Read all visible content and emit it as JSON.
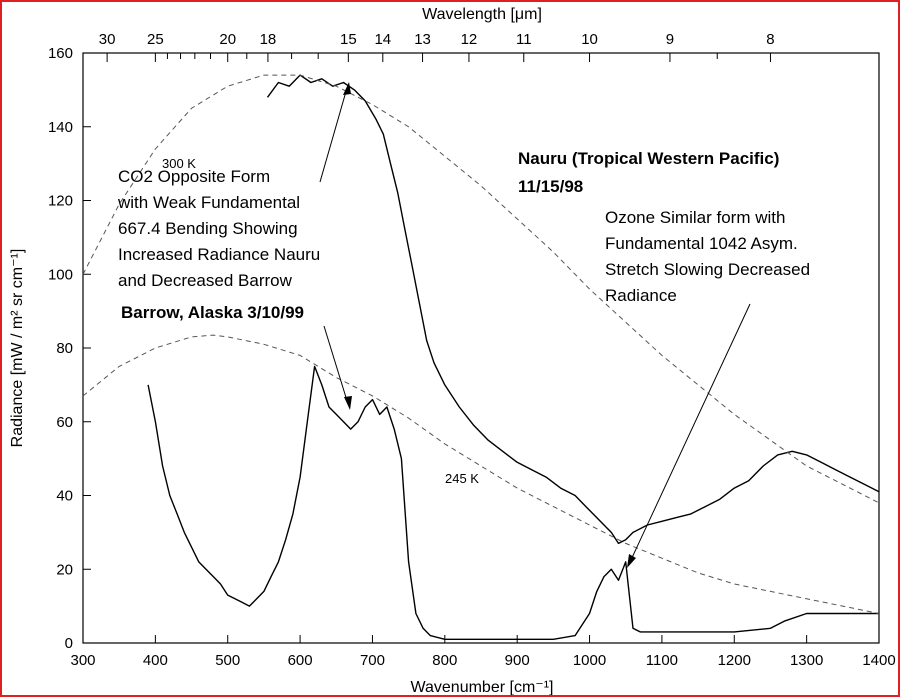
{
  "chart_data": {
    "type": "line",
    "x_axis": {
      "label": "Wavenumber [cm⁻¹]",
      "range": [
        300,
        1400
      ],
      "ticks": [
        300,
        400,
        500,
        600,
        700,
        800,
        900,
        1000,
        1100,
        1200,
        1300,
        1400
      ]
    },
    "top_axis": {
      "label": "Wavelength [μm]",
      "major_ticks": [
        30,
        25,
        20,
        18,
        15,
        14,
        13,
        12,
        11,
        10,
        9,
        8
      ],
      "minor_ticks": [
        24,
        23,
        22,
        21,
        19,
        17,
        16,
        8.5
      ]
    },
    "y_axis": {
      "label": "Radiance [mW / m² sr cm⁻¹]",
      "range": [
        0,
        160
      ],
      "ticks": [
        0,
        20,
        40,
        60,
        80,
        100,
        120,
        140,
        160
      ],
      "tick_labels": [
        "0",
        "20",
        "40",
        "60",
        "80",
        "100",
        "120",
        "140",
        "160"
      ]
    },
    "series": [
      {
        "name": "Nauru (Tropical Western Pacific) 11/15/98",
        "style": "solid",
        "x": [
          555,
          570,
          585,
          600,
          615,
          630,
          645,
          660,
          675,
          690,
          705,
          715,
          725,
          735,
          745,
          755,
          765,
          775,
          785,
          800,
          820,
          840,
          860,
          880,
          900,
          920,
          940,
          960,
          980,
          1000,
          1020,
          1030,
          1040,
          1050,
          1060,
          1080,
          1100,
          1120,
          1140,
          1160,
          1180,
          1200,
          1220,
          1240,
          1260,
          1280,
          1300,
          1320,
          1340,
          1360,
          1380,
          1400
        ],
        "y": [
          148,
          152,
          151,
          154,
          152,
          153,
          151,
          152,
          150,
          147,
          142,
          138,
          130,
          122,
          112,
          102,
          92,
          82,
          76,
          70,
          64,
          59,
          55,
          52,
          49,
          47,
          45,
          42,
          40,
          36,
          32,
          30,
          27,
          28,
          30,
          32,
          33,
          34,
          35,
          37,
          39,
          42,
          44,
          48,
          51,
          52,
          51,
          49,
          47,
          45,
          43,
          41
        ]
      },
      {
        "name": "Barrow, Alaska 3/10/99",
        "style": "solid",
        "x": [
          390,
          400,
          410,
          420,
          430,
          440,
          450,
          460,
          470,
          480,
          490,
          500,
          510,
          520,
          530,
          540,
          550,
          560,
          570,
          580,
          590,
          600,
          610,
          620,
          630,
          640,
          650,
          660,
          670,
          680,
          690,
          700,
          710,
          720,
          730,
          740,
          750,
          760,
          770,
          780,
          800,
          850,
          900,
          950,
          980,
          1000,
          1010,
          1020,
          1030,
          1040,
          1050,
          1060,
          1070,
          1080,
          1100,
          1150,
          1200,
          1250,
          1270,
          1300,
          1350,
          1400
        ],
        "y": [
          70,
          60,
          48,
          40,
          35,
          30,
          26,
          22,
          20,
          18,
          16,
          13,
          12,
          11,
          10,
          12,
          14,
          18,
          22,
          28,
          35,
          45,
          60,
          75,
          70,
          64,
          62,
          60,
          58,
          60,
          64,
          66,
          62,
          64,
          58,
          50,
          22,
          8,
          4,
          2,
          1,
          1,
          1,
          1,
          2,
          8,
          14,
          18,
          20,
          17,
          22,
          4,
          3,
          3,
          3,
          3,
          3,
          4,
          6,
          8,
          8,
          8
        ]
      },
      {
        "name": "300 K",
        "style": "dashed",
        "x": [
          300,
          350,
          400,
          450,
          500,
          550,
          600,
          650,
          700,
          750,
          800,
          850,
          900,
          950,
          1000,
          1050,
          1100,
          1150,
          1200,
          1250,
          1300,
          1350,
          1400
        ],
        "y": [
          100,
          119,
          134,
          145,
          151,
          154,
          154,
          151,
          146,
          140,
          132,
          124,
          115,
          106,
          96,
          87,
          78,
          70,
          62,
          55,
          48,
          43,
          38
        ]
      },
      {
        "name": "245 K",
        "style": "dashed",
        "x": [
          300,
          350,
          400,
          450,
          480,
          500,
          550,
          600,
          650,
          700,
          750,
          800,
          850,
          900,
          950,
          1000,
          1050,
          1100,
          1150,
          1200,
          1250,
          1300,
          1350,
          1400
        ],
        "y": [
          67,
          75,
          80,
          83,
          83.5,
          83,
          81,
          78,
          72,
          67,
          61,
          54,
          48,
          42,
          37,
          32,
          27,
          23,
          19,
          16,
          14,
          12,
          10,
          8
        ]
      }
    ],
    "annotations": {
      "co2": [
        "CO2 Opposite Form",
        "with Weak Fundamental",
        "667.4 Bending Showing",
        "Increased Radiance Nauru",
        "and Decreased Barrow"
      ],
      "nauru_line1": "Nauru (Tropical Western Pacific)",
      "nauru_line2": "11/15/98",
      "ozone": [
        "Ozone Similar form with",
        "Fundamental 1042 Asym.",
        "Stretch Slowing Decreased",
        "Radiance"
      ],
      "barrow": "Barrow, Alaska 3/10/99",
      "temp_300": "300 K",
      "temp_245": "245 K"
    }
  },
  "colors": {
    "frame": "#e02020",
    "ink": "#000000",
    "dash": "#555555"
  }
}
